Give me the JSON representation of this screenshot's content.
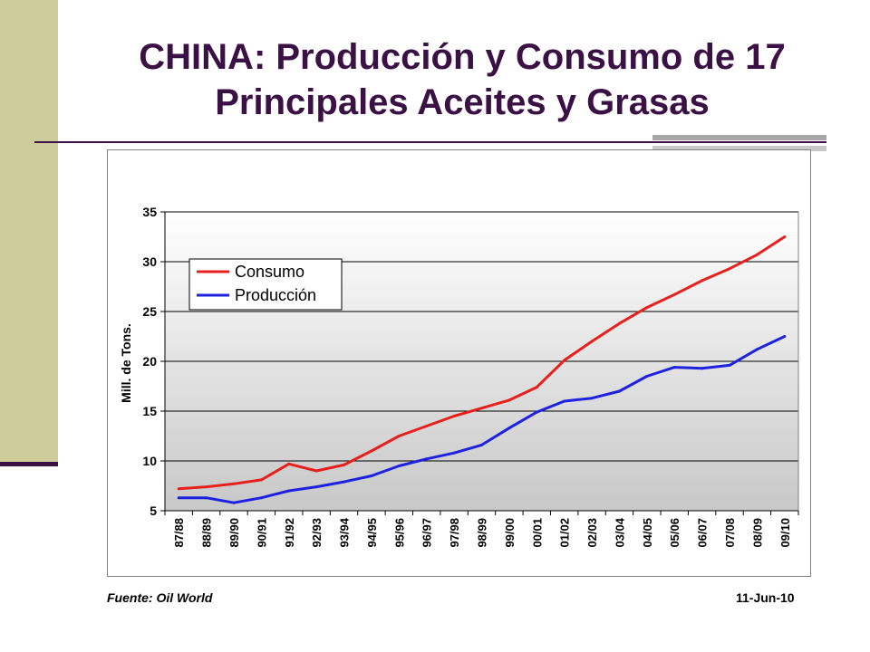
{
  "slide": {
    "title_line1": "CHINA: Producción y Consumo de 17",
    "title_line2": "Principales Aceites y Grasas",
    "source": "Fuente: Oil World",
    "date": "11-Jun-10"
  },
  "colors": {
    "title": "#3b1045",
    "sidebar": "#cfcc9c",
    "consumo": "#e8201c",
    "produccion": "#1c22e0"
  },
  "chart_data": {
    "type": "line",
    "title": "",
    "ylabel": "Mill. de Tons.",
    "xlabel": "",
    "ylim": [
      5,
      35
    ],
    "yticks": [
      5,
      10,
      15,
      20,
      25,
      30,
      35
    ],
    "grid": true,
    "legend_position": "top-left",
    "categories": [
      "87/88",
      "88/89",
      "89/90",
      "90/91",
      "91/92",
      "92/93",
      "93/94",
      "94/95",
      "95/96",
      "96/97",
      "97/98",
      "98/99",
      "99/00",
      "00/01",
      "01/02",
      "02/03",
      "03/04",
      "04/05",
      "05/06",
      "06/07",
      "07/08",
      "08/09",
      "09/10"
    ],
    "series": [
      {
        "name": "Consumo",
        "color": "#e8201c",
        "values": [
          7.2,
          7.4,
          7.7,
          8.1,
          9.7,
          9.0,
          9.6,
          11.0,
          12.5,
          13.5,
          14.5,
          15.3,
          16.1,
          17.4,
          20.1,
          22.0,
          23.8,
          25.4,
          26.7,
          28.1,
          29.3,
          30.7,
          32.5
        ]
      },
      {
        "name": "Producción",
        "color": "#1c22e0",
        "values": [
          6.3,
          6.3,
          5.8,
          6.3,
          7.0,
          7.4,
          7.9,
          8.5,
          9.5,
          10.2,
          10.8,
          11.6,
          13.3,
          14.9,
          16.0,
          16.3,
          17.0,
          18.5,
          19.4,
          19.3,
          19.6,
          21.2,
          22.5
        ]
      }
    ]
  }
}
